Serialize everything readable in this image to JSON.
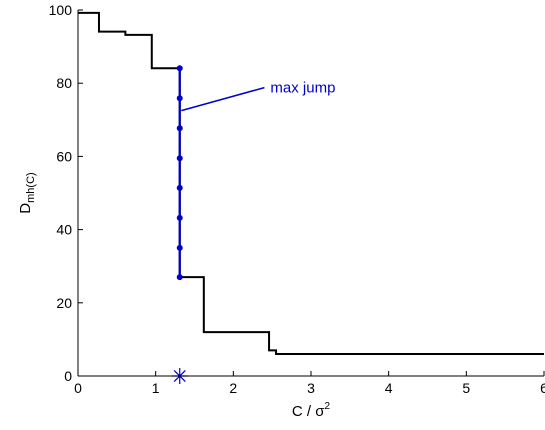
{
  "chart_data": {
    "type": "line",
    "xlabel": "C / σ",
    "xlabel_sup": "2",
    "ylabel": "D",
    "ylabel_sub": "mh(C)",
    "xlim": [
      0,
      6
    ],
    "ylim": [
      0,
      100
    ],
    "xticks": [
      0,
      1,
      2,
      3,
      4,
      5,
      6
    ],
    "yticks": [
      0,
      20,
      40,
      60,
      80,
      100
    ],
    "grid": false,
    "legend": "none",
    "series": [
      {
        "style": "step",
        "color": "#000000",
        "x": [
          0,
          0.27,
          0.27,
          0.61,
          0.61,
          0.95,
          0.95,
          1.31,
          1.31,
          1.62,
          1.62,
          2.46,
          2.46,
          2.55,
          2.55,
          6.0
        ],
        "y": [
          99.2,
          99.2,
          94.1,
          94.1,
          93.2,
          93.2,
          84.1,
          84.1,
          27.0,
          27.0,
          12.0,
          12.0,
          7.0,
          7.0,
          6.0,
          6.0
        ]
      },
      {
        "style": "line-markers",
        "color": "#0000cc",
        "x": [
          1.31,
          1.31,
          1.31,
          1.31,
          1.31,
          1.31,
          1.31,
          1.31
        ],
        "y": [
          84.1,
          75.9,
          67.7,
          59.5,
          51.4,
          43.2,
          35.0,
          27.0
        ]
      }
    ],
    "marker_point": {
      "x": 1.31,
      "y": 0,
      "symbol": "asterisk",
      "color": "#0000cc"
    },
    "annotations": [
      {
        "text": "max jump",
        "color": "#0000cc",
        "from": [
          2.4,
          78.8
        ],
        "to": [
          1.33,
          72.5
        ]
      }
    ]
  }
}
